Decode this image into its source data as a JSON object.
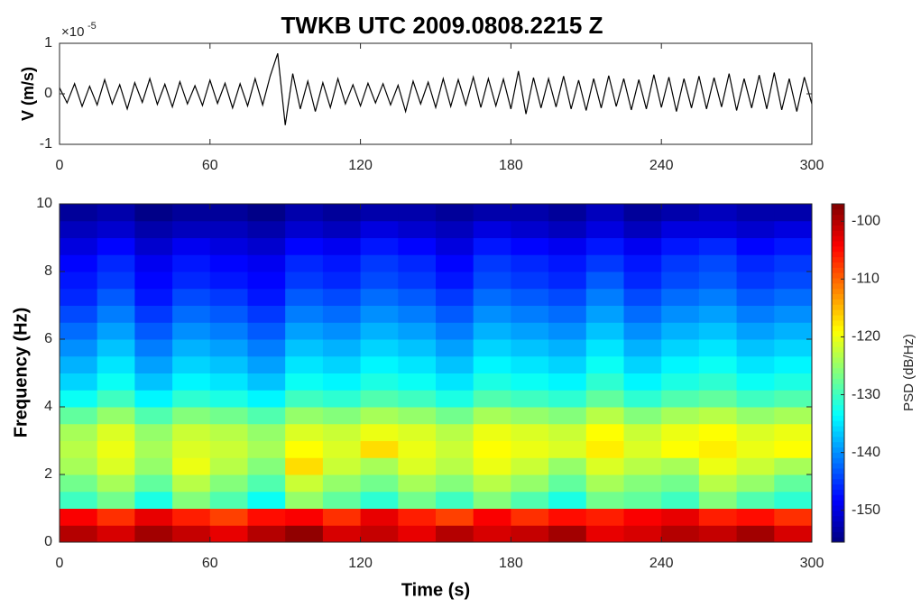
{
  "chart_data": [
    {
      "type": "line",
      "title": "TWKB  UTC  2009.0808.2215  Z",
      "y_label": "V (m/s)",
      "y_scale_base": "×10",
      "y_scale_exponent": "-5",
      "color": "#000000",
      "x": [
        0,
        3,
        6,
        9,
        12,
        15,
        18,
        21,
        24,
        27,
        30,
        33,
        36,
        39,
        42,
        45,
        48,
        51,
        54,
        57,
        60,
        63,
        66,
        69,
        72,
        75,
        78,
        81,
        84,
        87,
        90,
        93,
        96,
        99,
        102,
        105,
        108,
        111,
        114,
        117,
        120,
        123,
        126,
        129,
        132,
        135,
        138,
        141,
        144,
        147,
        150,
        153,
        156,
        159,
        162,
        165,
        168,
        171,
        174,
        177,
        180,
        183,
        186,
        189,
        192,
        195,
        198,
        201,
        204,
        207,
        210,
        213,
        216,
        219,
        222,
        225,
        228,
        231,
        234,
        237,
        240,
        243,
        246,
        249,
        252,
        255,
        258,
        261,
        264,
        267,
        270,
        273,
        276,
        279,
        282,
        285,
        288,
        291,
        294,
        297,
        300
      ],
      "values": [
        0.12,
        -0.18,
        0.2,
        -0.25,
        0.15,
        -0.22,
        0.28,
        -0.2,
        0.18,
        -0.3,
        0.22,
        -0.17,
        0.3,
        -0.21,
        0.19,
        -0.26,
        0.24,
        -0.2,
        0.16,
        -0.23,
        0.27,
        -0.19,
        0.21,
        -0.28,
        0.2,
        -0.24,
        0.3,
        -0.22,
        0.35,
        0.8,
        -0.62,
        0.4,
        -0.3,
        0.25,
        -0.35,
        0.22,
        -0.27,
        0.3,
        -0.2,
        0.18,
        -0.24,
        0.21,
        -0.18,
        0.2,
        -0.22,
        0.17,
        -0.35,
        0.25,
        -0.2,
        0.23,
        -0.27,
        0.3,
        -0.25,
        0.28,
        -0.22,
        0.33,
        -0.27,
        0.3,
        -0.24,
        0.29,
        -0.3,
        0.45,
        -0.4,
        0.32,
        -0.28,
        0.3,
        -0.26,
        0.35,
        -0.3,
        0.27,
        -0.33,
        0.3,
        -0.28,
        0.36,
        -0.25,
        0.3,
        -0.32,
        0.28,
        -0.3,
        0.38,
        -0.27,
        0.33,
        -0.35,
        0.3,
        -0.28,
        0.35,
        -0.3,
        0.32,
        -0.26,
        0.4,
        -0.33,
        0.3,
        -0.28,
        0.37,
        -0.3,
        0.42,
        -0.32,
        0.3,
        -0.35,
        0.33,
        -0.2
      ],
      "xlim": [
        0,
        300
      ],
      "xticks": [
        0,
        60,
        120,
        180,
        240,
        300
      ],
      "ylim": [
        -1,
        1
      ],
      "yticks": [
        -1,
        0,
        1
      ]
    },
    {
      "type": "heatmap",
      "x_label": "Time (s)",
      "y_label": "Frequency (Hz)",
      "colorbar_label": "PSD (dB/Hz)",
      "colormap": "jet",
      "x_bins": [
        0,
        15,
        30,
        45,
        60,
        75,
        90,
        105,
        120,
        135,
        150,
        165,
        180,
        195,
        210,
        225,
        240,
        255,
        270,
        285,
        300
      ],
      "y_bins": [
        0,
        0.5,
        1,
        1.5,
        2,
        2.5,
        3,
        3.5,
        4,
        4.5,
        5,
        5.5,
        6,
        6.5,
        7,
        7.5,
        8,
        8.5,
        9,
        9.5,
        10
      ],
      "values": [
        [
          -100,
          -102,
          -99,
          -101,
          -103,
          -100,
          -98,
          -102,
          -101,
          -103,
          -100,
          -102,
          -101,
          -99,
          -103,
          -102,
          -100,
          -101,
          -99,
          -102
        ],
        [
          -104,
          -107,
          -103,
          -106,
          -108,
          -105,
          -104,
          -107,
          -103,
          -106,
          -108,
          -104,
          -107,
          -105,
          -106,
          -104,
          -103,
          -106,
          -105,
          -107
        ],
        [
          -130,
          -127,
          -132,
          -126,
          -129,
          -133,
          -125,
          -128,
          -131,
          -127,
          -130,
          -126,
          -129,
          -132,
          -127,
          -128,
          -130,
          -126,
          -129,
          -131
        ],
        [
          -127,
          -124,
          -128,
          -123,
          -126,
          -129,
          -122,
          -125,
          -127,
          -124,
          -126,
          -123,
          -125,
          -128,
          -124,
          -126,
          -127,
          -123,
          -125,
          -128
        ],
        [
          -124,
          -121,
          -125,
          -120,
          -123,
          -126,
          -117,
          -122,
          -124,
          -121,
          -123,
          -120,
          -122,
          -125,
          -121,
          -123,
          -124,
          -120,
          -122,
          -124
        ],
        [
          -123,
          -120,
          -124,
          -121,
          -122,
          -124,
          -119,
          -121,
          -117,
          -120,
          -122,
          -119,
          -120,
          -121,
          -118,
          -121,
          -119,
          -118,
          -120,
          -119
        ],
        [
          -124,
          -121,
          -125,
          -122,
          -123,
          -125,
          -121,
          -122,
          -120,
          -121,
          -123,
          -120,
          -121,
          -122,
          -119,
          -122,
          -120,
          -119,
          -121,
          -120
        ],
        [
          -128,
          -125,
          -129,
          -126,
          -127,
          -129,
          -125,
          -126,
          -124,
          -125,
          -127,
          -124,
          -125,
          -126,
          -123,
          -126,
          -124,
          -123,
          -125,
          -124
        ],
        [
          -133,
          -130,
          -134,
          -131,
          -132,
          -134,
          -130,
          -131,
          -129,
          -130,
          -132,
          -129,
          -130,
          -131,
          -128,
          -131,
          -129,
          -128,
          -130,
          -129
        ],
        [
          -136,
          -133,
          -137,
          -134,
          -135,
          -137,
          -133,
          -134,
          -132,
          -133,
          -135,
          -132,
          -133,
          -134,
          -131,
          -134,
          -132,
          -131,
          -133,
          -132
        ],
        [
          -138,
          -135,
          -139,
          -136,
          -137,
          -139,
          -135,
          -136,
          -134,
          -135,
          -137,
          -134,
          -135,
          -136,
          -133,
          -136,
          -134,
          -133,
          -135,
          -134
        ],
        [
          -140,
          -137,
          -141,
          -138,
          -139,
          -141,
          -137,
          -138,
          -136,
          -137,
          -139,
          -136,
          -137,
          -138,
          -135,
          -138,
          -136,
          -135,
          -137,
          -136
        ],
        [
          -142,
          -139,
          -143,
          -140,
          -141,
          -143,
          -139,
          -140,
          -138,
          -139,
          -141,
          -138,
          -139,
          -140,
          -137,
          -140,
          -138,
          -137,
          -139,
          -138
        ],
        [
          -144,
          -141,
          -145,
          -142,
          -143,
          -145,
          -141,
          -142,
          -140,
          -141,
          -143,
          -140,
          -141,
          -142,
          -139,
          -142,
          -140,
          -139,
          -141,
          -140
        ],
        [
          -146,
          -143,
          -147,
          -144,
          -145,
          -147,
          -143,
          -144,
          -142,
          -143,
          -145,
          -142,
          -143,
          -144,
          -141,
          -144,
          -142,
          -141,
          -143,
          -142
        ],
        [
          -147,
          -145,
          -148,
          -146,
          -147,
          -148,
          -145,
          -146,
          -144,
          -145,
          -147,
          -144,
          -145,
          -146,
          -143,
          -146,
          -144,
          -143,
          -145,
          -144
        ],
        [
          -148,
          -146,
          -149,
          -147,
          -148,
          -149,
          -146,
          -147,
          -145,
          -146,
          -148,
          -145,
          -146,
          -147,
          -145,
          -147,
          -145,
          -144,
          -146,
          -145
        ],
        [
          -150,
          -148,
          -151,
          -149,
          -150,
          -151,
          -148,
          -149,
          -147,
          -148,
          -150,
          -147,
          -148,
          -149,
          -147,
          -149,
          -147,
          -146,
          -148,
          -147
        ],
        [
          -152,
          -151,
          -153,
          -152,
          -152,
          -153,
          -151,
          -152,
          -150,
          -151,
          -152,
          -150,
          -151,
          -152,
          -150,
          -152,
          -150,
          -150,
          -151,
          -150
        ],
        [
          -154,
          -153,
          -155,
          -154,
          -154,
          -155,
          -153,
          -154,
          -153,
          -153,
          -154,
          -153,
          -153,
          -154,
          -152,
          -154,
          -153,
          -152,
          -153,
          -153
        ]
      ],
      "xlim": [
        0,
        300
      ],
      "xticks": [
        0,
        60,
        120,
        180,
        240,
        300
      ],
      "ylim": [
        0,
        10
      ],
      "yticks": [
        0,
        2,
        4,
        6,
        8,
        10
      ],
      "clim": [
        -155.5,
        -97
      ],
      "cticks": [
        -150,
        -140,
        -130,
        -120,
        -110,
        -100
      ]
    }
  ]
}
